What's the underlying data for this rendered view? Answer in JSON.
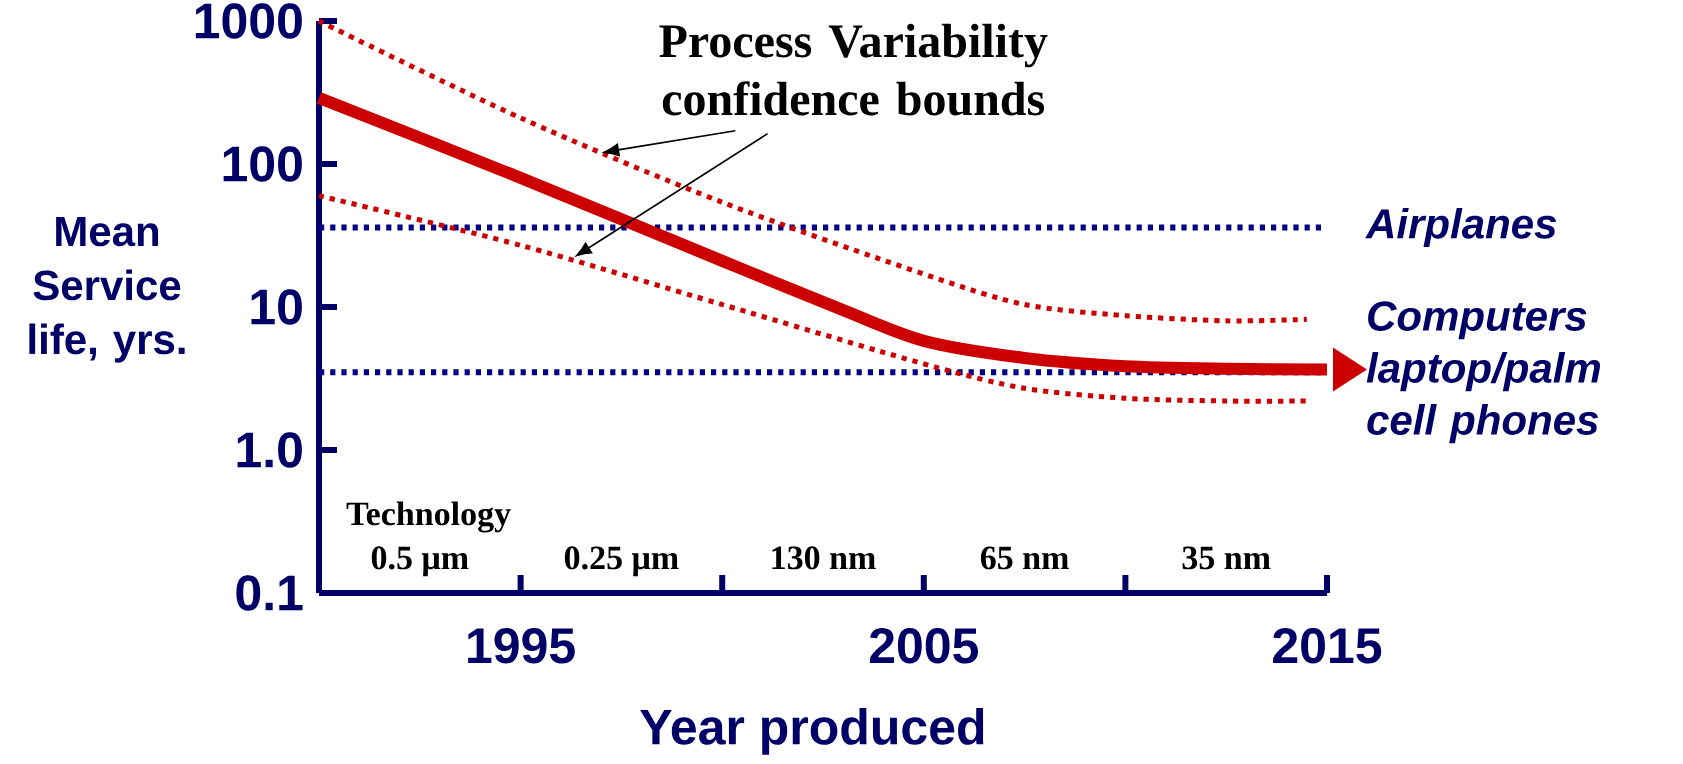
{
  "chart_data": {
    "type": "line",
    "xlabel": "Year produced",
    "ylabel": "Mean Service life, yrs.",
    "annotations": [
      {
        "text": "Process Variability confidence bounds",
        "x": 1997,
        "y": 120
      },
      "Technology",
      "0.5 μm",
      "0.25 μm",
      "130 nm",
      "65 nm",
      "35 nm"
    ],
    "xlim": [
      1990,
      2015
    ],
    "ylim": [
      0.1,
      1000
    ],
    "log": "y",
    "xticks": [
      1995,
      2005,
      2015
    ],
    "yticks": [
      {
        "value": 0.1,
        "label": "0.1"
      },
      {
        "value": 1,
        "label": "1.0"
      },
      10,
      100,
      1000
    ],
    "series": [
      {
        "color": "#cc0000",
        "line_style": "solid",
        "x": [
          1990,
          1995,
          2000,
          2003,
          2005,
          2007.5,
          2010,
          2012.5,
          2015
        ],
        "values": [
          290,
          80,
          21,
          9.5,
          5.8,
          4.4,
          3.85,
          3.7,
          3.65
        ]
      },
      {
        "color": "#cc0000",
        "line_style": "dotted",
        "x": [
          1990,
          1995,
          2000,
          2005,
          2007.5,
          2010,
          2012.5,
          2014.5
        ],
        "values": [
          1000,
          210,
          54,
          17,
          10.4,
          8.7,
          8,
          8.2
        ]
      },
      {
        "color": "#cc0000",
        "line_style": "dotted",
        "x": [
          1990,
          1995,
          2000,
          2005,
          2007.5,
          2010,
          2012.5,
          2014.5
        ],
        "values": [
          60,
          27,
          10.4,
          4,
          2.7,
          2.3,
          2.2,
          2.2
        ]
      }
    ],
    "ref_lines": [
      {
        "axis": "y",
        "value": 36,
        "label": "Airplanes",
        "color": "#000080",
        "line_style": "dotted"
      },
      {
        "axis": "y",
        "value": 3.5,
        "label": "Computers laptop/palm cell phones",
        "color": "#000080",
        "line_style": "dotted"
      }
    ]
  }
}
